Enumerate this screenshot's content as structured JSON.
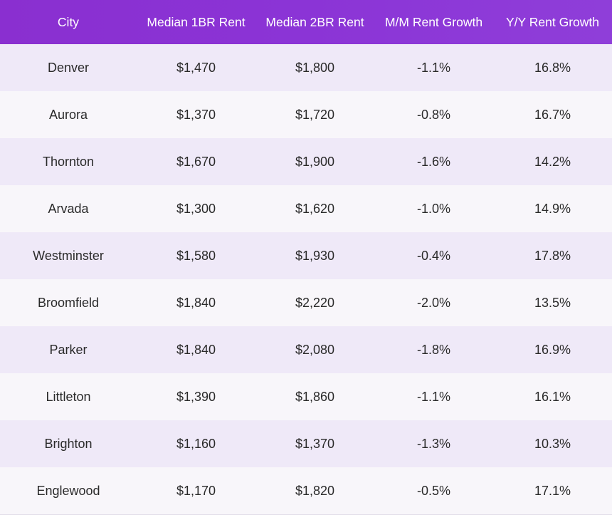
{
  "table": {
    "headers": [
      "City",
      "Median 1BR Rent",
      "Median 2BR Rent",
      "M/M Rent Growth",
      "Y/Y Rent Growth"
    ],
    "rows": [
      [
        "Denver",
        "$1,470",
        "$1,800",
        "-1.1%",
        "16.8%"
      ],
      [
        "Aurora",
        "$1,370",
        "$1,720",
        "-0.8%",
        "16.7%"
      ],
      [
        "Thornton",
        "$1,670",
        "$1,900",
        "-1.6%",
        "14.2%"
      ],
      [
        "Arvada",
        "$1,300",
        "$1,620",
        "-1.0%",
        "14.9%"
      ],
      [
        "Westminster",
        "$1,580",
        "$1,930",
        "-0.4%",
        "17.8%"
      ],
      [
        "Broomfield",
        "$1,840",
        "$2,220",
        "-2.0%",
        "13.5%"
      ],
      [
        "Parker",
        "$1,840",
        "$2,080",
        "-1.8%",
        "16.9%"
      ],
      [
        "Littleton",
        "$1,390",
        "$1,860",
        "-1.1%",
        "16.1%"
      ],
      [
        "Brighton",
        "$1,160",
        "$1,370",
        "-1.3%",
        "10.3%"
      ],
      [
        "Englewood",
        "$1,170",
        "$1,820",
        "-0.5%",
        "17.1%"
      ]
    ]
  },
  "colors": {
    "header_bg": "#8b34d6",
    "header_text": "#ffffff",
    "row_odd_bg": "#efe9f8",
    "row_even_bg": "#f8f6fa",
    "cell_text": "#2a2a2a"
  }
}
